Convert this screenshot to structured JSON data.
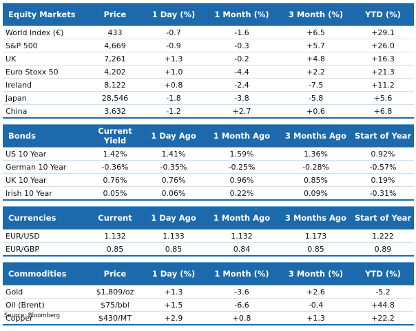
{
  "tables": [
    {
      "headers": [
        "Equity Markets",
        "Price",
        "1 Day (%)",
        "1 Month (%)",
        "3 Month (%)",
        "YTD (%)"
      ],
      "rows": [
        [
          "World Index (€)",
          "433",
          "-0.7",
          "-1.6",
          "+6.5",
          "+29.1"
        ],
        [
          "S&P 500",
          "4,669",
          "-0.9",
          "-0.3",
          "+5.7",
          "+26.0"
        ],
        [
          "UK",
          "7,261",
          "+1.3",
          "-0.2",
          "+4.8",
          "+16.3"
        ],
        [
          "Euro Stoxx 50",
          "4,202",
          "+1.0",
          "-4.4",
          "+2.2",
          "+21.3"
        ],
        [
          "Ireland",
          "8,122",
          "+0.8",
          "-2.4",
          "-7.5",
          "+11.2"
        ],
        [
          "Japan",
          "28,546",
          "-1.8",
          "-3.8",
          "-5.8",
          "+5.6"
        ],
        [
          "China",
          "3,632",
          "-1.2",
          "+2.7",
          "+0.6",
          "+6.8"
        ]
      ]
    },
    {
      "headers": [
        "Bonds",
        "Current Yield",
        "1 Day Ago",
        "1 Month Ago",
        "3 Months Ago",
        "Start of Year"
      ],
      "rows": [
        [
          "US 10 Year",
          "1.42%",
          "1.41%",
          "1.59%",
          "1.36%",
          "0.92%"
        ],
        [
          "German 10 Year",
          "-0.36%",
          "-0.35%",
          "-0.25%",
          "-0.28%",
          "-0.57%"
        ],
        [
          "UK 10 Year",
          "0.76%",
          "0.76%",
          "0.96%",
          "0.85%",
          "0.19%"
        ],
        [
          "Irish 10 Year",
          "0.05%",
          "0.06%",
          "0.22%",
          "0.09%",
          "-0.31%"
        ]
      ]
    },
    {
      "headers": [
        "Currencies",
        "Current",
        "1 Day Ago",
        "1 Month Ago",
        "3 Months Ago",
        "Start of Year"
      ],
      "rows": [
        [
          "EUR/USD",
          "1.132",
          "1.133",
          "1.132",
          "1.173",
          "1.222"
        ],
        [
          "EUR/GBP",
          "0.85",
          "0.85",
          "0.84",
          "0.85",
          "0.89"
        ]
      ]
    },
    {
      "headers": [
        "Commodities",
        "Price",
        "1 Day (%)",
        "1 Month (%)",
        "3 Month (%)",
        "YTD (%)"
      ],
      "rows": [
        [
          "Gold",
          "$1,809/oz",
          "+1.3",
          "-3.6",
          "+2.6",
          "-5.2"
        ],
        [
          "Oil (Brent)",
          "$75/bbl",
          "+1.5",
          "-6.6",
          "-0.4",
          "+44.8"
        ],
        [
          "Copper",
          "$430/MT",
          "+2.9",
          "+0.8",
          "+1.3",
          "+22.2"
        ]
      ]
    }
  ],
  "source": "Source: Bloomberg",
  "colors": {
    "header_bg": "#1c6aab",
    "header_text": "#ffffff",
    "row_divider": "#cfe0ef"
  }
}
